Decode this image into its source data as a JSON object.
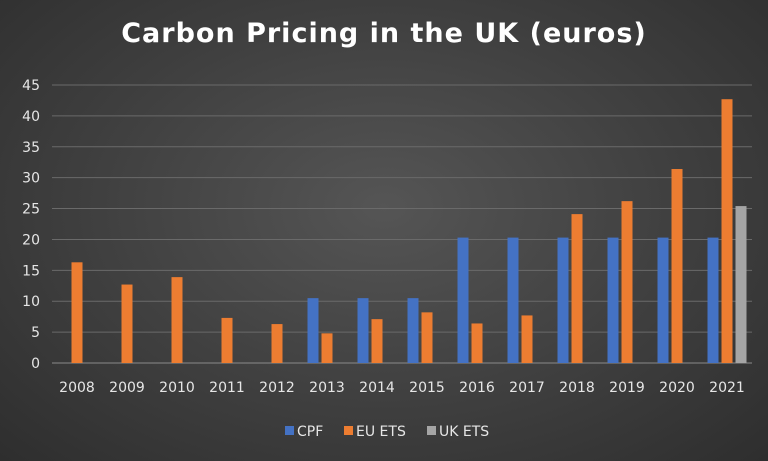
{
  "chart_data": {
    "type": "bar",
    "title": "Carbon Pricing in the UK (euros)",
    "xlabel": "",
    "ylabel": "",
    "ylim": [
      0,
      45
    ],
    "yticks": [
      0,
      5,
      10,
      15,
      20,
      25,
      30,
      35,
      40,
      45
    ],
    "grid": true,
    "legend_position": "bottom",
    "categories": [
      "2008",
      "2009",
      "2010",
      "2011",
      "2012",
      "2013",
      "2014",
      "2015",
      "2016",
      "2017",
      "2018",
      "2019",
      "2020",
      "2021"
    ],
    "series": [
      {
        "name": "CPF",
        "color": "#4472c4",
        "values": [
          null,
          null,
          null,
          null,
          null,
          10.5,
          10.5,
          10.5,
          20.3,
          20.3,
          20.3,
          20.3,
          20.3,
          20.3
        ]
      },
      {
        "name": "EU ETS",
        "color": "#ed7d31",
        "values": [
          16.3,
          12.7,
          13.9,
          7.3,
          6.3,
          4.8,
          7.1,
          8.2,
          6.4,
          7.7,
          24.1,
          26.2,
          31.4,
          42.7
        ]
      },
      {
        "name": "UK ETS",
        "color": "#a5a5a5",
        "values": [
          null,
          null,
          null,
          null,
          null,
          null,
          null,
          null,
          null,
          null,
          null,
          null,
          null,
          25.4
        ]
      }
    ]
  }
}
